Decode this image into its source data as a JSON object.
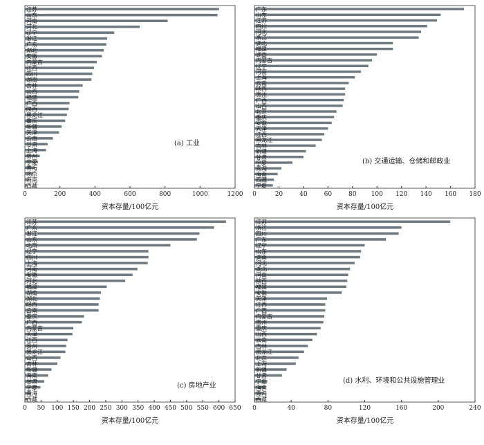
{
  "colors": {
    "bar": "#6f7a80",
    "axis": "#333333",
    "frame": "#555555"
  },
  "chart_data": [
    {
      "type": "bar",
      "orientation": "horizontal",
      "title": "(a) 工业",
      "xlabel": "资本存量/100亿元",
      "xlim": [
        0,
        1200
      ],
      "xticks": [
        0,
        200,
        400,
        600,
        800,
        1000,
        1200
      ],
      "categories": [
        "江苏",
        "山东",
        "河南",
        "河北",
        "辽宁",
        "浙江",
        "广东",
        "湖北",
        "安徽",
        "内蒙古",
        "江西",
        "四川",
        "湖南",
        "吉林",
        "山西",
        "福建",
        "广西",
        "陕西",
        "黑龙江",
        "重庆",
        "新疆",
        "天津",
        "云南",
        "甘肃",
        "上海",
        "贵州",
        "宁夏",
        "青海",
        "北京",
        "海南",
        "西藏"
      ],
      "values": [
        1108,
        1100,
        815,
        655,
        510,
        470,
        465,
        450,
        440,
        410,
        395,
        385,
        380,
        330,
        310,
        305,
        255,
        250,
        240,
        230,
        210,
        195,
        160,
        130,
        120,
        85,
        75,
        55,
        45,
        20,
        12
      ]
    },
    {
      "type": "bar",
      "orientation": "horizontal",
      "title": "(b) 交通运输、仓储和邮政业",
      "xlabel": "资本存量/100亿元",
      "xlim": [
        0,
        180
      ],
      "xticks": [
        0,
        20,
        40,
        60,
        80,
        100,
        120,
        140,
        160,
        180
      ],
      "categories": [
        "广东",
        "山东",
        "江苏",
        "四川",
        "河北",
        "浙江",
        "湖北",
        "福建",
        "湖南",
        "内蒙古",
        "辽宁",
        "河南",
        "上海",
        "云南",
        "陕西",
        "贵州",
        "广西",
        "山西",
        "北京",
        "重庆",
        "安徽",
        "天津",
        "江西",
        "黑龙江",
        "吉林",
        "新疆",
        "甘肃",
        "宁夏",
        "青海",
        "海南",
        "西藏",
        "宁夏"
      ],
      "values": [
        171,
        152,
        149,
        141,
        136,
        134,
        113,
        113,
        100,
        96,
        93,
        87,
        82,
        77,
        74,
        74,
        73,
        72,
        67,
        65,
        63,
        60,
        57,
        55,
        50,
        42,
        40,
        31,
        22,
        19,
        16,
        15
      ]
    },
    {
      "type": "bar",
      "orientation": "horizontal",
      "title": "(c) 房地产业",
      "xlabel": "资本存量/100亿元",
      "xlim": [
        0,
        650
      ],
      "xticks": [
        0,
        50,
        100,
        150,
        200,
        250,
        300,
        350,
        400,
        450,
        500,
        550,
        600,
        650
      ],
      "categories": [
        "江苏",
        "广东",
        "浙江",
        "山东",
        "北京",
        "辽宁",
        "四川",
        "上海",
        "河南",
        "安徽",
        "河北",
        "福建",
        "湖南",
        "湖北",
        "陕西",
        "云南",
        "重庆",
        "广西",
        "内蒙古",
        "天津",
        "江西",
        "贵州",
        "黑龙江",
        "山西",
        "吉林",
        "新疆",
        "海南",
        "甘肃",
        "宁夏",
        "青海",
        "西藏"
      ],
      "values": [
        622,
        585,
        540,
        532,
        450,
        382,
        382,
        380,
        348,
        333,
        310,
        253,
        235,
        232,
        228,
        228,
        183,
        176,
        150,
        147,
        132,
        128,
        125,
        110,
        100,
        82,
        72,
        60,
        48,
        20,
        8
      ]
    },
    {
      "type": "bar",
      "orientation": "horizontal",
      "title": "(d) 水利、环境和公共设施管理业",
      "xlabel": "资本存量/100亿元",
      "xlim": [
        0,
        240
      ],
      "xticks": [
        0,
        40,
        80,
        120,
        160,
        200,
        240
      ],
      "categories": [
        "江苏",
        "浙江",
        "四川",
        "广东",
        "辽宁",
        "山东",
        "湖南",
        "河北",
        "湖北",
        "河南",
        "陕西",
        "福建",
        "安徽",
        "天津",
        "江西",
        "广西",
        "内蒙古",
        "贵州",
        "重庆",
        "山西",
        "云南",
        "吉林",
        "黑龙江",
        "北京",
        "上海",
        "新疆",
        "甘肃",
        "宁夏",
        "海南",
        "青海",
        "西藏"
      ],
      "values": [
        213,
        160,
        157,
        143,
        120,
        116,
        115,
        109,
        104,
        102,
        101,
        100,
        95,
        79,
        77,
        77,
        76,
        75,
        72,
        68,
        63,
        58,
        54,
        48,
        45,
        35,
        30,
        14,
        12,
        10,
        7
      ]
    }
  ]
}
